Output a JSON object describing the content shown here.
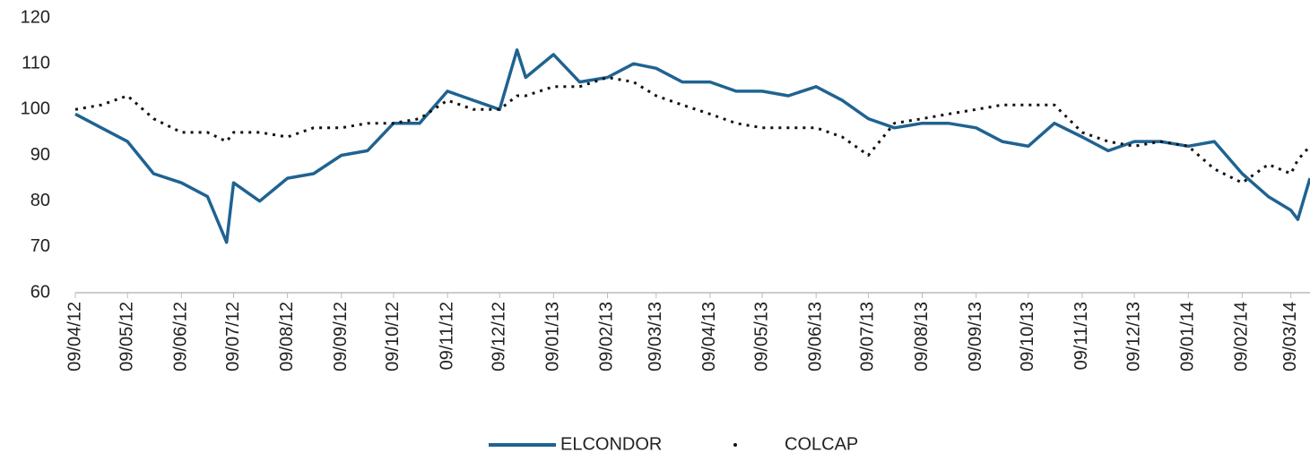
{
  "chart_data": {
    "type": "line",
    "x": [
      "09/04/12",
      "24/04/12",
      "09/05/12",
      "24/05/12",
      "09/06/12",
      "24/06/12",
      "05/07/12",
      "09/07/12",
      "24/07/12",
      "09/08/12",
      "24/08/12",
      "09/09/12",
      "24/09/12",
      "09/10/12",
      "24/10/12",
      "09/11/12",
      "24/11/12",
      "09/12/12",
      "19/12/12",
      "24/12/12",
      "09/01/13",
      "24/01/13",
      "09/02/13",
      "24/02/13",
      "09/03/13",
      "24/03/13",
      "09/04/13",
      "24/04/13",
      "09/05/13",
      "24/05/13",
      "09/06/13",
      "24/06/13",
      "09/07/13",
      "24/07/13",
      "09/08/13",
      "24/08/13",
      "09/09/13",
      "24/09/13",
      "09/10/13",
      "24/10/13",
      "09/11/13",
      "24/11/13",
      "09/12/13",
      "24/12/13",
      "09/01/14",
      "24/01/14",
      "09/02/14",
      "24/02/14",
      "09/03/14",
      "13/03/14",
      "20/03/14"
    ],
    "series": [
      {
        "name": "ELCONDOR",
        "color": "#1f6391",
        "style": "solid",
        "values": [
          99,
          96,
          93,
          86,
          84,
          81,
          71,
          84,
          80,
          85,
          86,
          90,
          91,
          97,
          97,
          104,
          102,
          100,
          113,
          107,
          112,
          106,
          107,
          110,
          109,
          106,
          106,
          104,
          104,
          103,
          105,
          102,
          98,
          96,
          97,
          97,
          96,
          93,
          92,
          97,
          94,
          91,
          93,
          93,
          92,
          93,
          86,
          81,
          78,
          76,
          85
        ]
      },
      {
        "name": "COLCAP",
        "color": "#111111",
        "style": "dotted",
        "values": [
          100,
          101,
          103,
          98,
          95,
          95,
          93,
          95,
          95,
          94,
          96,
          96,
          97,
          97,
          98,
          102,
          100,
          100,
          103,
          103,
          105,
          105,
          107,
          106,
          103,
          101,
          99,
          97,
          96,
          96,
          96,
          94,
          90,
          97,
          98,
          99,
          100,
          101,
          101,
          101,
          95,
          93,
          92,
          93,
          92,
          87,
          84,
          88,
          86,
          89,
          92
        ]
      }
    ],
    "xlim": [
      "09/04/12",
      "20/03/14"
    ],
    "xticks": [
      "09/04/12",
      "09/05/12",
      "09/06/12",
      "09/07/12",
      "09/08/12",
      "09/09/12",
      "09/10/12",
      "09/11/12",
      "09/12/12",
      "09/01/13",
      "09/02/13",
      "09/03/13",
      "09/04/13",
      "09/05/13",
      "09/06/13",
      "09/07/13",
      "09/08/13",
      "09/09/13",
      "09/10/13",
      "09/11/13",
      "09/12/13",
      "09/01/14",
      "09/02/14",
      "09/03/14"
    ],
    "ylim": [
      60,
      120
    ],
    "yticks": [
      60,
      70,
      80,
      90,
      100,
      110,
      120
    ],
    "grid": false,
    "legend": "bottom"
  }
}
